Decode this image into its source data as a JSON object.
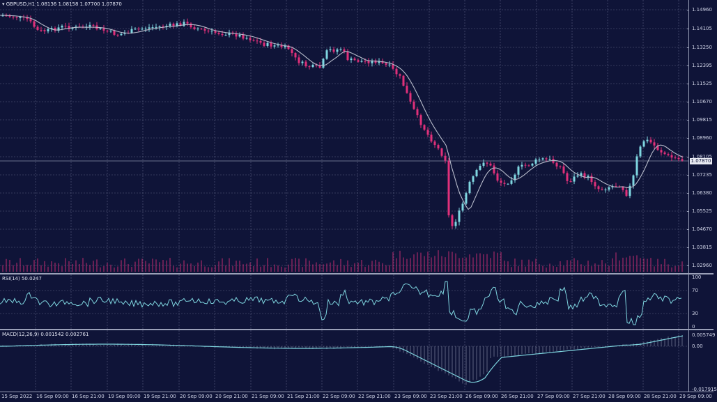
{
  "main_title": "▾ GBPUSD,H1  1.08136 1.08158 1.07700 1.07870",
  "rsi_title": "RSI(14) 50.0247",
  "macd_title": "MACD(12,26,9) 0.001542 0.002761",
  "current_price": "1.07870",
  "price_labels": [
    "1.14960",
    "1.14105",
    "1.13250",
    "1.12395",
    "1.11525",
    "1.10670",
    "1.09815",
    "1.08960",
    "1.08105",
    "1.07235",
    "1.06380",
    "1.05525",
    "1.04670",
    "1.03815",
    "1.02960"
  ],
  "rsi_labels": [
    "100",
    "70",
    "30",
    "0"
  ],
  "macd_labels": [
    "0.005749",
    "0.00",
    "-0.017915"
  ],
  "time_labels": [
    "15 Sep 2022",
    "16 Sep 09:00",
    "16 Sep 21:00",
    "19 Sep 09:00",
    "19 Sep 21:00",
    "20 Sep 09:00",
    "20 Sep 21:00",
    "21 Sep 09:00",
    "21 Sep 21:00",
    "22 Sep 09:00",
    "22 Sep 21:00",
    "23 Sep 09:00",
    "23 Sep 21:00",
    "26 Sep 09:00",
    "26 Sep 21:00",
    "27 Sep 09:00",
    "27 Sep 21:00",
    "28 Sep 09:00",
    "28 Sep 21:00",
    "29 Sep 09:00"
  ],
  "colors": {
    "background": "#0f1438",
    "bull": "#7fd6e0",
    "bear": "#e0307a",
    "ma": "#b8bccb",
    "rsi": "#7fd6e0",
    "macd": "#7fd6e0",
    "grid": "#5a6080"
  }
}
